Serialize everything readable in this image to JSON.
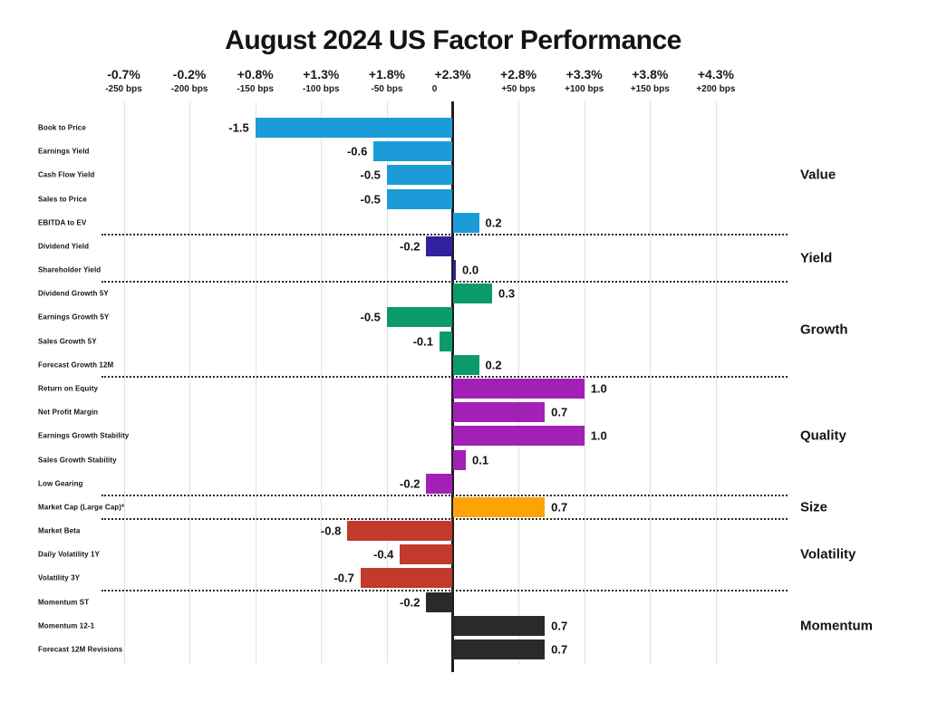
{
  "title": "August 2024 US Factor Performance",
  "axis": {
    "percent_labels": [
      "-0.7%",
      "-0.2%",
      "+0.8%",
      "+1.3%",
      "+1.8%",
      "+2.3%",
      "+2.8%",
      "+3.3%",
      "+3.8%",
      "+4.3%"
    ],
    "bps_labels": [
      "-250 bps",
      "-200 bps",
      "-150 bps",
      "-100 bps",
      "-50 bps",
      "0",
      "+50 bps",
      "+100 bps",
      "+150 bps",
      "+200 bps"
    ]
  },
  "chart_data": {
    "type": "bar",
    "orientation": "horizontal",
    "title": "August 2024 US Factor Performance",
    "value_unit": "percent (1.0 = 100 bps)",
    "tick_values": [
      -2.5,
      -2.0,
      -1.5,
      -1.0,
      -0.5,
      0,
      0.5,
      1.0,
      1.5,
      2.0
    ],
    "xlim": [
      -2.67,
      2.54
    ],
    "grid": true,
    "groups": [
      {
        "name": "Value",
        "color": "#1b9cd9",
        "items": [
          {
            "label": "Book to Price",
            "value": -1.5,
            "display": "-1.5"
          },
          {
            "label": "Earnings Yield",
            "value": -0.6,
            "display": "-0.6"
          },
          {
            "label": "Cash Flow Yield",
            "value": -0.5,
            "display": "-0.5"
          },
          {
            "label": "Sales to Price",
            "value": -0.5,
            "display": "-0.5"
          },
          {
            "label": "EBITDA to EV",
            "value": 0.2,
            "display": "0.2"
          }
        ]
      },
      {
        "name": "Yield",
        "color": "#32219c",
        "items": [
          {
            "label": "Dividend Yield",
            "value": -0.2,
            "display": "-0.2"
          },
          {
            "label": "Shareholder Yield",
            "value": 0.0,
            "display": "0.0"
          }
        ]
      },
      {
        "name": "Growth",
        "color": "#0b9b68",
        "items": [
          {
            "label": "Dividend Growth 5Y",
            "value": 0.3,
            "display": "0.3"
          },
          {
            "label": "Earnings Growth 5Y",
            "value": -0.5,
            "display": "-0.5"
          },
          {
            "label": "Sales Growth 5Y",
            "value": -0.1,
            "display": "-0.1"
          },
          {
            "label": "Forecast Growth 12M",
            "value": 0.2,
            "display": "0.2"
          }
        ]
      },
      {
        "name": "Quality",
        "color": "#a220b6",
        "items": [
          {
            "label": "Return on Equity",
            "value": 1.0,
            "display": "1.0"
          },
          {
            "label": "Net Profit Margin",
            "value": 0.7,
            "display": "0.7"
          },
          {
            "label": "Earnings Growth Stability",
            "value": 1.0,
            "display": "1.0"
          },
          {
            "label": "Sales Growth Stability",
            "value": 0.1,
            "display": "0.1"
          },
          {
            "label": "Low Gearing",
            "value": -0.2,
            "display": "-0.2"
          }
        ]
      },
      {
        "name": "Size",
        "color": "#fca405",
        "items": [
          {
            "label": "Market Cap (Large Cap)*",
            "value": 0.7,
            "display": "0.7"
          }
        ]
      },
      {
        "name": "Volatility",
        "color": "#c23a2b",
        "items": [
          {
            "label": "Market Beta",
            "value": -0.8,
            "display": "-0.8"
          },
          {
            "label": "Daily Volatility 1Y",
            "value": -0.4,
            "display": "-0.4"
          },
          {
            "label": "Volatility 3Y",
            "value": -0.7,
            "display": "-0.7"
          }
        ]
      },
      {
        "name": "Momentum",
        "color": "#2a2a2a",
        "items": [
          {
            "label": "Momentum ST",
            "value": -0.2,
            "display": "-0.2"
          },
          {
            "label": "Momentum 12-1",
            "value": 0.7,
            "display": "0.7"
          },
          {
            "label": "Forecast 12M Revisions",
            "value": 0.7,
            "display": "0.7"
          }
        ]
      }
    ]
  }
}
